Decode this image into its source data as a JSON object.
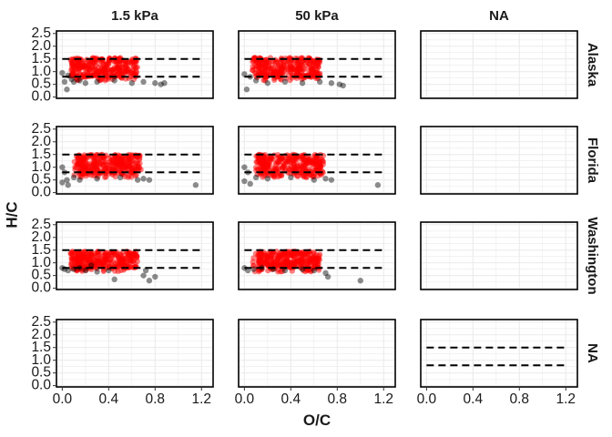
{
  "chart_data": {
    "type": "scatter",
    "facet_layout": "grid",
    "xlabel": "O/C",
    "ylabel": "H/C",
    "x_ticks": [
      "0.0",
      "0.4",
      "0.8",
      "1.2"
    ],
    "y_ticks": [
      "0.0",
      "0.5",
      "1.0",
      "1.5",
      "2.0",
      "2.5"
    ],
    "xlim": [
      -0.05,
      1.3
    ],
    "ylim": [
      -0.05,
      2.6
    ],
    "grid": true,
    "legend": "none",
    "reference_lines": [
      1.5,
      0.8
    ],
    "col_facets": [
      "1.5 kPa",
      "50 kPa",
      "NA"
    ],
    "row_facets": [
      "Alaska",
      "Florida",
      "Washington",
      "NA"
    ],
    "colors": {
      "main_points": "#ff0000",
      "other_points": "#000000",
      "ref_line": "#000000",
      "grid": "#ebebeb",
      "border": "#000000"
    },
    "panels": [
      {
        "row": 0,
        "col": 0,
        "has_data": true,
        "red_region": {
          "x": [
            0.12,
            0.65
          ],
          "y": [
            0.8,
            1.55
          ]
        },
        "black_points": [
          [
            0.0,
            0.95
          ],
          [
            0.02,
            0.6
          ],
          [
            0.04,
            0.3
          ],
          [
            0.05,
            0.85
          ],
          [
            0.08,
            0.7
          ],
          [
            0.1,
            0.6
          ],
          [
            0.15,
            0.65
          ],
          [
            0.2,
            0.55
          ],
          [
            0.3,
            0.6
          ],
          [
            0.45,
            0.65
          ],
          [
            0.6,
            0.55
          ],
          [
            0.7,
            0.6
          ],
          [
            0.8,
            0.55
          ],
          [
            0.85,
            0.5
          ],
          [
            0.88,
            0.55
          ]
        ]
      },
      {
        "row": 0,
        "col": 1,
        "has_data": true,
        "red_region": {
          "x": [
            0.12,
            0.65
          ],
          "y": [
            0.8,
            1.55
          ]
        },
        "black_points": [
          [
            0.0,
            0.9
          ],
          [
            0.02,
            0.3
          ],
          [
            0.05,
            0.8
          ],
          [
            0.1,
            0.65
          ],
          [
            0.2,
            0.55
          ],
          [
            0.35,
            0.6
          ],
          [
            0.5,
            0.55
          ],
          [
            0.65,
            0.6
          ],
          [
            0.75,
            0.55
          ],
          [
            0.82,
            0.5
          ],
          [
            0.85,
            0.45
          ]
        ]
      },
      {
        "row": 0,
        "col": 2,
        "has_data": false
      },
      {
        "row": 1,
        "col": 0,
        "has_data": true,
        "red_region": {
          "x": [
            0.15,
            0.68
          ],
          "y": [
            0.75,
            1.5
          ]
        },
        "black_points": [
          [
            0.0,
            1.0
          ],
          [
            0.0,
            0.4
          ],
          [
            0.02,
            0.8
          ],
          [
            0.04,
            0.5
          ],
          [
            0.05,
            0.3
          ],
          [
            0.1,
            0.6
          ],
          [
            0.15,
            0.5
          ],
          [
            0.3,
            0.55
          ],
          [
            0.5,
            0.6
          ],
          [
            0.65,
            0.5
          ],
          [
            0.7,
            0.55
          ],
          [
            0.75,
            0.5
          ],
          [
            1.15,
            0.3
          ]
        ]
      },
      {
        "row": 1,
        "col": 1,
        "has_data": true,
        "red_region": {
          "x": [
            0.15,
            0.68
          ],
          "y": [
            0.75,
            1.5
          ]
        },
        "black_points": [
          [
            0.0,
            1.0
          ],
          [
            0.0,
            0.45
          ],
          [
            0.03,
            0.8
          ],
          [
            0.05,
            0.35
          ],
          [
            0.1,
            0.6
          ],
          [
            0.2,
            0.55
          ],
          [
            0.4,
            0.6
          ],
          [
            0.6,
            0.5
          ],
          [
            0.7,
            0.55
          ],
          [
            0.75,
            0.5
          ],
          [
            1.15,
            0.3
          ]
        ]
      },
      {
        "row": 1,
        "col": 2,
        "has_data": false
      },
      {
        "row": 2,
        "col": 0,
        "has_data": true,
        "red_region": {
          "x": [
            0.12,
            0.65
          ],
          "y": [
            0.8,
            1.45
          ]
        },
        "black_points": [
          [
            0.0,
            0.8
          ],
          [
            0.02,
            0.75
          ],
          [
            0.05,
            0.7
          ],
          [
            0.1,
            0.75
          ],
          [
            0.15,
            0.8
          ],
          [
            0.2,
            0.7
          ],
          [
            0.25,
            0.9
          ],
          [
            0.3,
            0.65
          ],
          [
            0.4,
            0.7
          ],
          [
            0.45,
            0.35
          ],
          [
            0.7,
            0.5
          ],
          [
            0.72,
            0.7
          ],
          [
            0.75,
            0.3
          ],
          [
            0.8,
            0.45
          ]
        ]
      },
      {
        "row": 2,
        "col": 1,
        "has_data": true,
        "red_region": {
          "x": [
            0.12,
            0.65
          ],
          "y": [
            0.8,
            1.45
          ]
        },
        "black_points": [
          [
            0.0,
            0.8
          ],
          [
            0.03,
            0.7
          ],
          [
            0.08,
            0.75
          ],
          [
            0.15,
            0.8
          ],
          [
            0.25,
            0.75
          ],
          [
            0.35,
            0.7
          ],
          [
            0.5,
            0.75
          ],
          [
            0.6,
            0.7
          ],
          [
            0.7,
            0.6
          ],
          [
            0.72,
            0.45
          ],
          [
            1.0,
            0.3
          ]
        ]
      },
      {
        "row": 2,
        "col": 2,
        "has_data": false
      },
      {
        "row": 3,
        "col": 0,
        "has_data": false
      },
      {
        "row": 3,
        "col": 1,
        "has_data": false
      },
      {
        "row": 3,
        "col": 2,
        "has_data": false
      }
    ]
  }
}
